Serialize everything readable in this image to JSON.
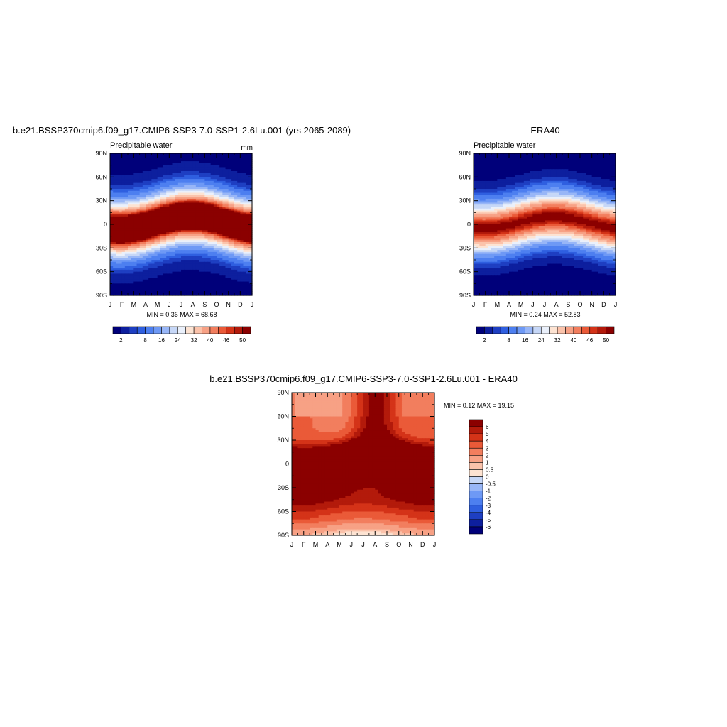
{
  "chart_data": [
    {
      "id": "model",
      "type": "heatmap",
      "title": "b.e21.BSSP370cmip6.f09_g17.CMIP6-SSP3-7.0-SSP1-2.6Lu.001 (yrs 2065-2089)",
      "subtitle_left": "Precipitable water",
      "subtitle_right": "mm",
      "x_ticks": [
        "J",
        "F",
        "M",
        "A",
        "M",
        "J",
        "J",
        "A",
        "S",
        "O",
        "N",
        "D",
        "J"
      ],
      "y_ticks": [
        "90N",
        "60N",
        "30N",
        "0",
        "30S",
        "60S",
        "90S"
      ],
      "y_tick_values": [
        90,
        60,
        30,
        0,
        -30,
        -60,
        -90
      ],
      "xlim": [
        0,
        12
      ],
      "ylim": [
        -90,
        90
      ],
      "stats": "MIN =   0.36 MAX =  68.68",
      "colorbar": {
        "orientation": "horizontal",
        "labels": [
          "2",
          "8",
          "16",
          "24",
          "32",
          "40",
          "46",
          "50"
        ],
        "levels": [
          2,
          4,
          6,
          8,
          12,
          16,
          20,
          24,
          28,
          32,
          36,
          40,
          44,
          46,
          48,
          50
        ],
        "colors": [
          "#00007a",
          "#0d1f9e",
          "#1e3fc2",
          "#2f5fe0",
          "#4d7ff0",
          "#6e99f5",
          "#98b6f7",
          "#c6d7f7",
          "#eaf0fb",
          "#fde3d2",
          "#fbc3ab",
          "#f7a185",
          "#f27e5e",
          "#ea5a38",
          "#d43318",
          "#b31a0b",
          "#8b0000"
        ]
      },
      "model": {
        "base": 1.5,
        "peak": 67,
        "center_amp": 8,
        "center_phase": 6.8,
        "width": 22
      }
    },
    {
      "id": "obs",
      "type": "heatmap",
      "title": "ERA40",
      "subtitle_left": "Precipitable water",
      "subtitle_right": "",
      "x_ticks": [
        "J",
        "F",
        "M",
        "A",
        "M",
        "J",
        "J",
        "A",
        "S",
        "O",
        "N",
        "D",
        "J"
      ],
      "y_ticks": [
        "90N",
        "60N",
        "30N",
        "0",
        "30S",
        "60S",
        "90S"
      ],
      "y_tick_values": [
        90,
        60,
        30,
        0,
        -30,
        -60,
        -90
      ],
      "xlim": [
        0,
        12
      ],
      "ylim": [
        -90,
        90
      ],
      "stats": "MIN =   0.24 MAX =  52.83",
      "colorbar": {
        "orientation": "horizontal",
        "labels": [
          "2",
          "8",
          "16",
          "24",
          "32",
          "40",
          "46",
          "50"
        ],
        "levels": [
          2,
          4,
          6,
          8,
          12,
          16,
          20,
          24,
          28,
          32,
          36,
          40,
          44,
          46,
          48,
          50
        ],
        "colors": [
          "#00007a",
          "#0d1f9e",
          "#1e3fc2",
          "#2f5fe0",
          "#4d7ff0",
          "#6e99f5",
          "#98b6f7",
          "#c6d7f7",
          "#eaf0fb",
          "#fde3d2",
          "#fbc3ab",
          "#f7a185",
          "#f27e5e",
          "#ea5a38",
          "#d43318",
          "#b31a0b",
          "#8b0000"
        ]
      },
      "model": {
        "base": 1.2,
        "peak": 51,
        "center_amp": 7,
        "center_phase": 6.8,
        "width": 21
      }
    },
    {
      "id": "diff",
      "type": "heatmap",
      "title": "b.e21.BSSP370cmip6.f09_g17.CMIP6-SSP3-7.0-SSP1-2.6Lu.001 - ERA40",
      "subtitle_left": "",
      "subtitle_right": "",
      "x_ticks": [
        "J",
        "F",
        "M",
        "A",
        "M",
        "J",
        "J",
        "A",
        "S",
        "O",
        "N",
        "D",
        "J"
      ],
      "y_ticks": [
        "90N",
        "60N",
        "30N",
        "0",
        "30S",
        "60S",
        "90S"
      ],
      "y_tick_values": [
        90,
        60,
        30,
        0,
        -30,
        -60,
        -90
      ],
      "xlim": [
        0,
        12
      ],
      "ylim": [
        -90,
        90
      ],
      "stats": "MIN =   0.12 MAX =  19.15",
      "colorbar": {
        "orientation": "vertical",
        "labels": [
          "6",
          "5",
          "4",
          "3",
          "2",
          "1",
          "0.5",
          "0",
          "-0.5",
          "-1",
          "-2",
          "-3",
          "-4",
          "-5",
          "-6"
        ],
        "levels": [
          -6,
          -5,
          -4,
          -3,
          -2,
          -1,
          -0.5,
          0,
          0.5,
          1,
          2,
          3,
          4,
          5,
          6
        ],
        "colors": [
          "#00007a",
          "#0d1f9e",
          "#1e3fc2",
          "#2f5fe0",
          "#4d7ff0",
          "#6e99f5",
          "#98b6f7",
          "#c6d7f7",
          "#fde3d2",
          "#fbc3ab",
          "#f7a185",
          "#f27e5e",
          "#ea5a38",
          "#d43318",
          "#b31a0b",
          "#8b0000"
        ]
      }
    }
  ]
}
